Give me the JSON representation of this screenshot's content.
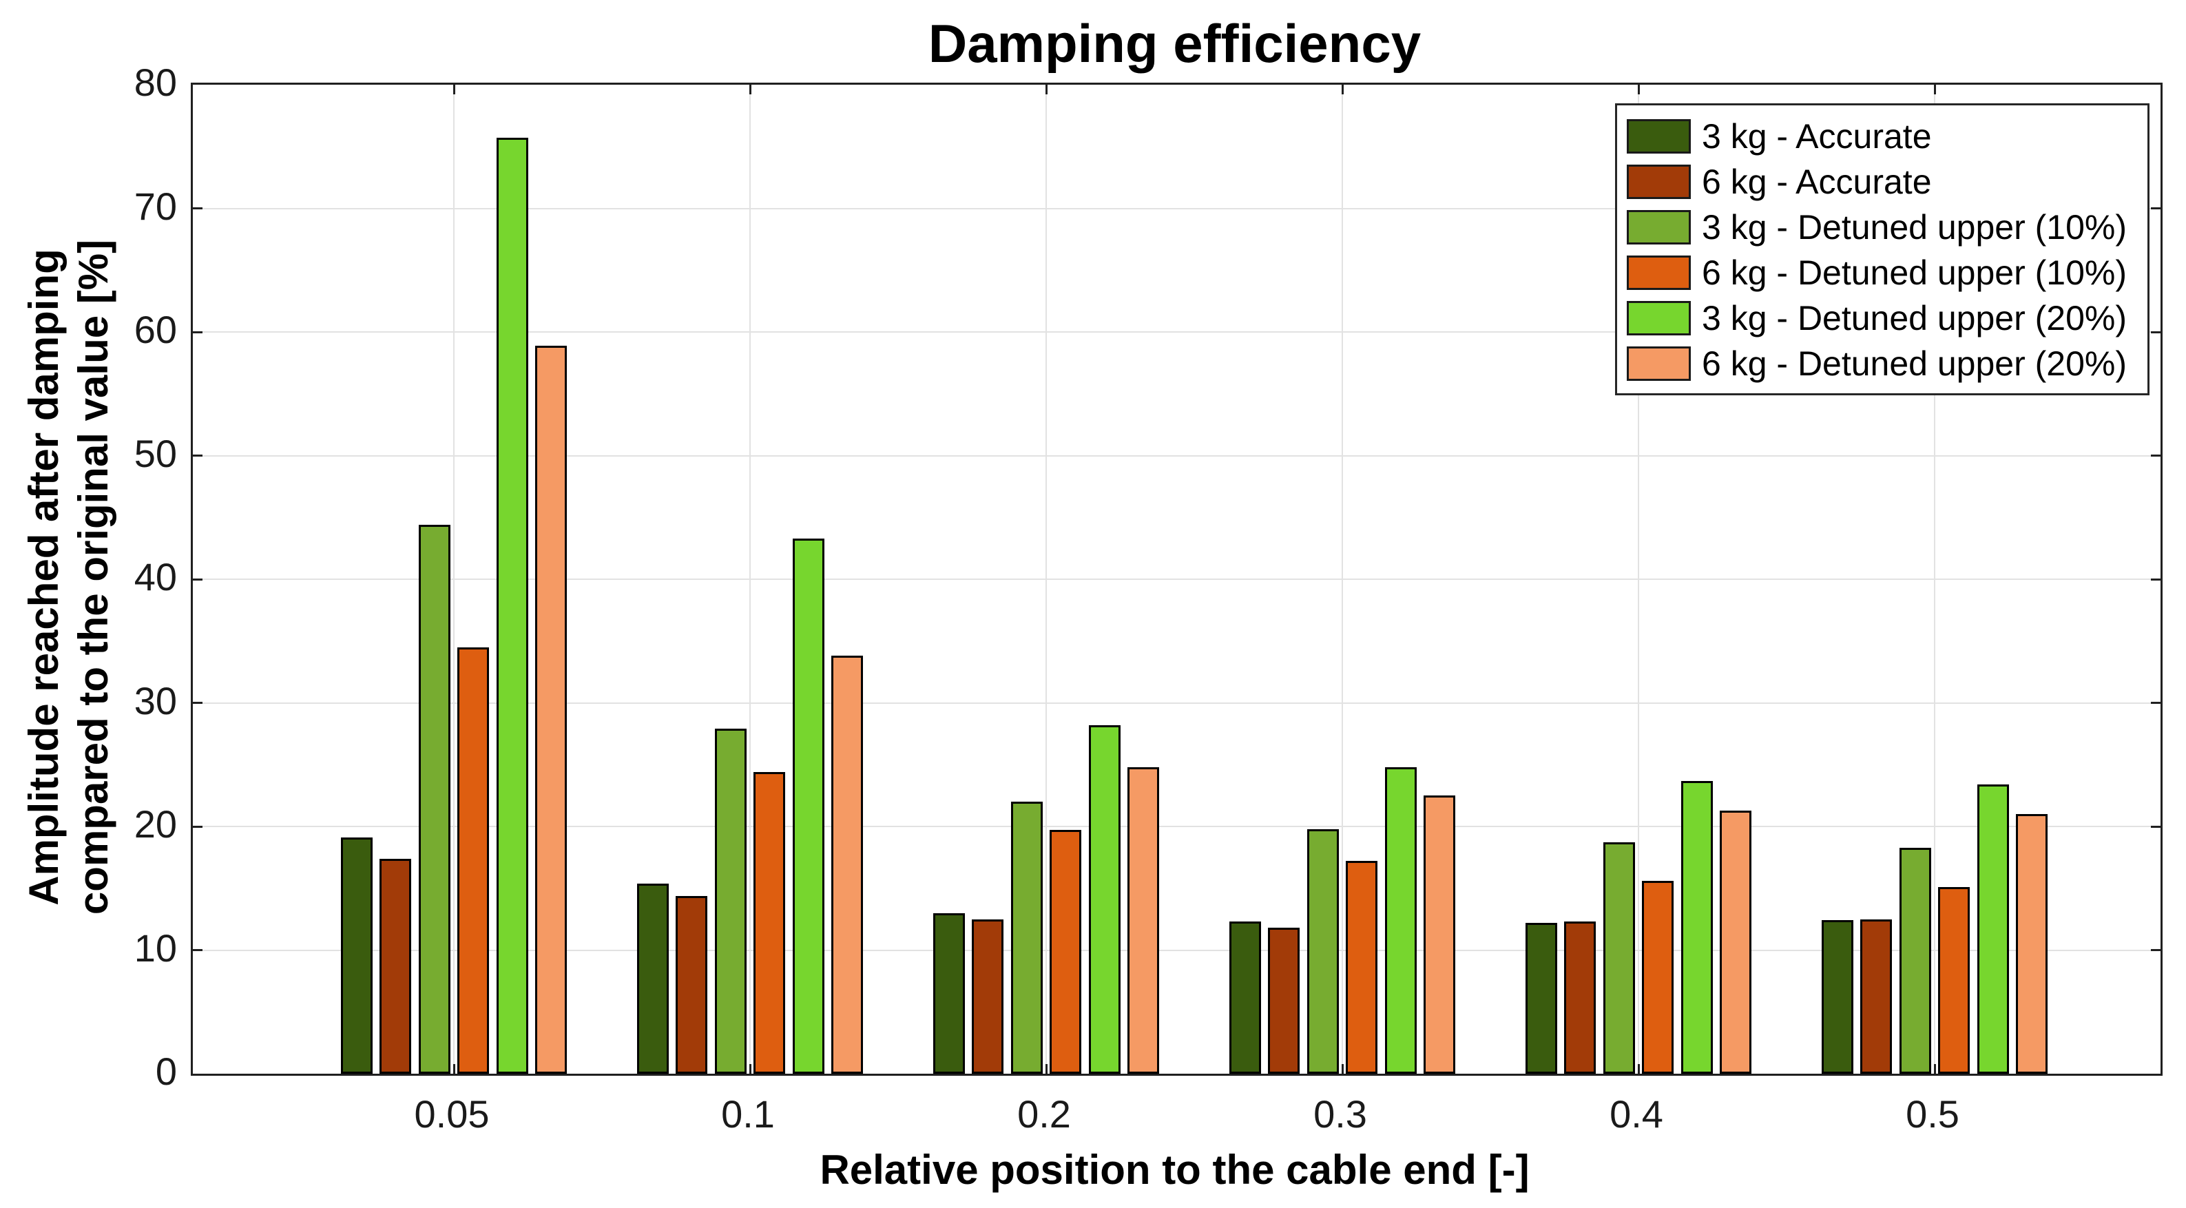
{
  "labels": {
    "title": "Damping efficiency",
    "xlabel": "Relative position to the cable end [-]",
    "ylabel_line1": "Amplitude reached after damping",
    "ylabel_line2": "compared to the original value [%]"
  },
  "colors": {
    "axis": "#202020",
    "grid": "#e2e2e2",
    "bar_edge": "#000000",
    "background": "#ffffff"
  },
  "chart_data": {
    "type": "bar",
    "title": "Damping efficiency",
    "xlabel": "Relative position to the cable end [-]",
    "ylabel": "Amplitude reached after damping compared to the original value [%]",
    "categories": [
      "0.05",
      "0.1",
      "0.2",
      "0.3",
      "0.4",
      "0.5"
    ],
    "ylim": [
      0,
      80
    ],
    "ytick_step": 10,
    "yticks": [
      0,
      10,
      20,
      30,
      40,
      50,
      60,
      70,
      80
    ],
    "grid": true,
    "legend_position": "upper right",
    "series": [
      {
        "name": "3 kg - Accurate",
        "color": "#3a5c0e",
        "values": [
          19.1,
          15.4,
          13.0,
          12.3,
          12.2,
          12.4
        ]
      },
      {
        "name": "6 kg - Accurate",
        "color": "#a23b08",
        "values": [
          17.4,
          14.4,
          12.5,
          11.8,
          12.3,
          12.5
        ]
      },
      {
        "name": "3 kg - Detuned upper (10%)",
        "color": "#77ac30",
        "values": [
          44.4,
          27.9,
          22.0,
          19.8,
          18.7,
          18.3
        ]
      },
      {
        "name": "6 kg - Detuned upper (10%)",
        "color": "#de5e10",
        "values": [
          34.5,
          24.4,
          19.7,
          17.2,
          15.6,
          15.1
        ]
      },
      {
        "name": "3 kg - Detuned upper (20%)",
        "color": "#77d62e",
        "values": [
          75.7,
          43.3,
          28.2,
          24.8,
          23.7,
          23.4
        ]
      },
      {
        "name": "6 kg - Detuned upper (20%)",
        "color": "#f59a64",
        "values": [
          58.9,
          33.8,
          24.8,
          22.5,
          21.3,
          21.0
        ]
      }
    ]
  }
}
